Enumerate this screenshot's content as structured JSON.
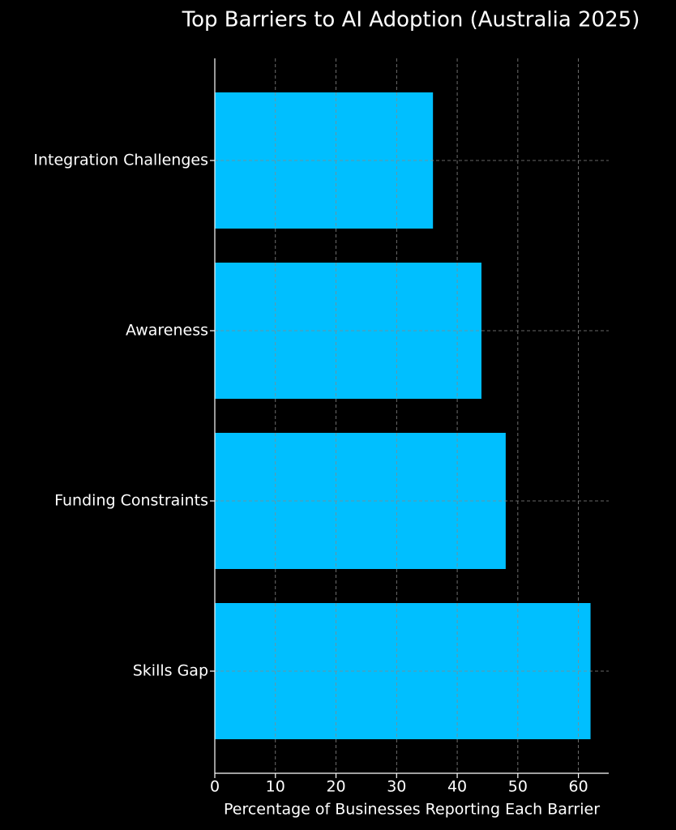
{
  "chart_data": {
    "type": "barh",
    "title": "Top Barriers to AI Adoption (Australia 2025)",
    "x_label": "Percentage of Businesses Reporting Each Barrier",
    "categories": [
      "Skills Gap",
      "Funding Constraints",
      "Awareness",
      "Integration Challenges"
    ],
    "values": [
      62,
      48,
      44,
      36
    ],
    "color": "#00bfff",
    "xlim": [
      0,
      65
    ],
    "xticks": [
      0,
      10,
      20,
      30,
      40,
      50,
      60
    ],
    "grid": true
  }
}
